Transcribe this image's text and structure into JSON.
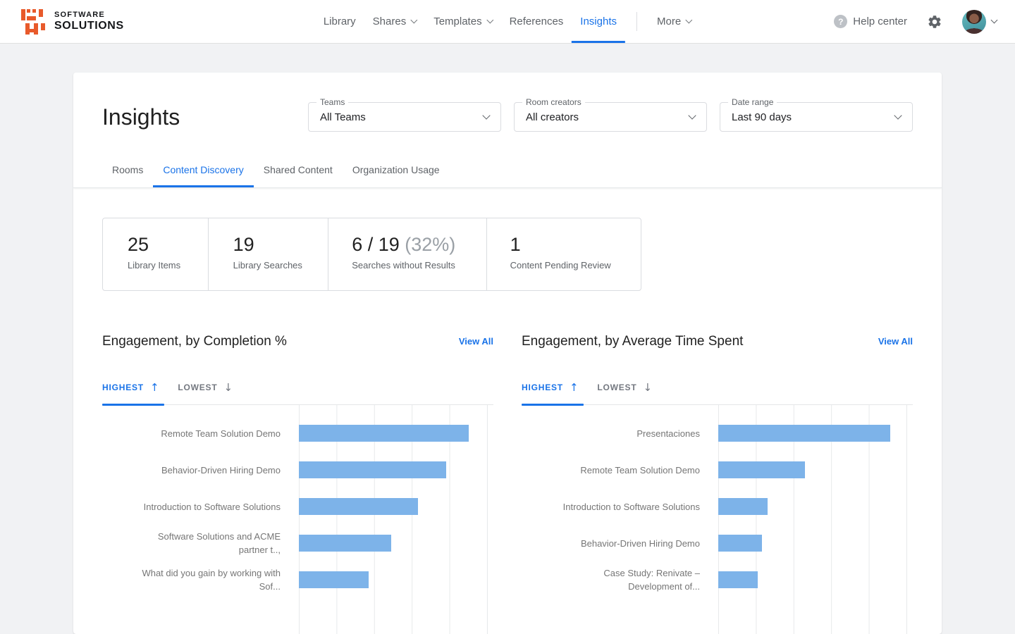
{
  "brand": {
    "line1": "SOFTWARE",
    "line2": "SOLUTIONS"
  },
  "nav": {
    "items": [
      {
        "label": "Library",
        "chevron": false,
        "active": false
      },
      {
        "label": "Shares",
        "chevron": true,
        "active": false
      },
      {
        "label": "Templates",
        "chevron": true,
        "active": false
      },
      {
        "label": "References",
        "chevron": false,
        "active": false
      },
      {
        "label": "Insights",
        "chevron": false,
        "active": true
      },
      {
        "label": "More",
        "chevron": true,
        "active": false
      }
    ],
    "help_label": "Help center"
  },
  "page": {
    "title": "Insights"
  },
  "filters": {
    "teams": {
      "label": "Teams",
      "value": "All Teams"
    },
    "room_creators": {
      "label": "Room creators",
      "value": "All creators"
    },
    "date_range": {
      "label": "Date range",
      "value": "Last 90 days"
    }
  },
  "tabs": [
    {
      "label": "Rooms",
      "active": false
    },
    {
      "label": "Content Discovery",
      "active": true
    },
    {
      "label": "Shared Content",
      "active": false
    },
    {
      "label": "Organization Usage",
      "active": false
    }
  ],
  "stats": [
    {
      "value": "25",
      "label": "Library Items"
    },
    {
      "value": "19",
      "label": "Library Searches"
    },
    {
      "value": "6 / 19",
      "secondary": "(32%)",
      "label": "Searches without Results"
    },
    {
      "value": "1",
      "label": "Content Pending Review"
    }
  ],
  "sort": {
    "highest": "HIGHEST",
    "lowest": "LOWEST",
    "up_arrow": "↑",
    "down_arrow": "↓"
  },
  "view_all": "View All",
  "chart_data": [
    {
      "type": "bar",
      "orientation": "horizontal",
      "title": "Engagement, by Completion %",
      "sort_active": "highest",
      "legend_position": "none",
      "grid": true,
      "gridline_count": 6,
      "xlim_pct": [
        0,
        100
      ],
      "categories": [
        "Remote Team Solution Demo",
        "Behavior-Driven Hiring Demo",
        "Introduction to Software Solutions",
        "Software Solutions and ACME partner t..,",
        "What did you gain by working with Sof..."
      ],
      "values": [
        90,
        78,
        63,
        49,
        37
      ],
      "value_unit": "percent of x-axis span (no tick labels shown)"
    },
    {
      "type": "bar",
      "orientation": "horizontal",
      "title": "Engagement, by Average Time Spent",
      "sort_active": "highest",
      "legend_position": "none",
      "grid": true,
      "gridline_count": 6,
      "xlim_pct": [
        0,
        100
      ],
      "categories": [
        "Presentaciones",
        "Remote Team Solution Demo",
        "Introduction to Software Solutions",
        "Behavior-Driven Hiring Demo",
        "Case Study: Renivate – Development of..."
      ],
      "values": [
        91,
        46,
        26,
        23,
        21
      ],
      "value_unit": "percent of x-axis span (no tick labels shown)"
    }
  ],
  "colors": {
    "accent": "#1a73e8",
    "bar": "#7db3e9",
    "logo": "#e85a2b",
    "background": "#f1f2f4",
    "muted_text": "#5f6368"
  }
}
